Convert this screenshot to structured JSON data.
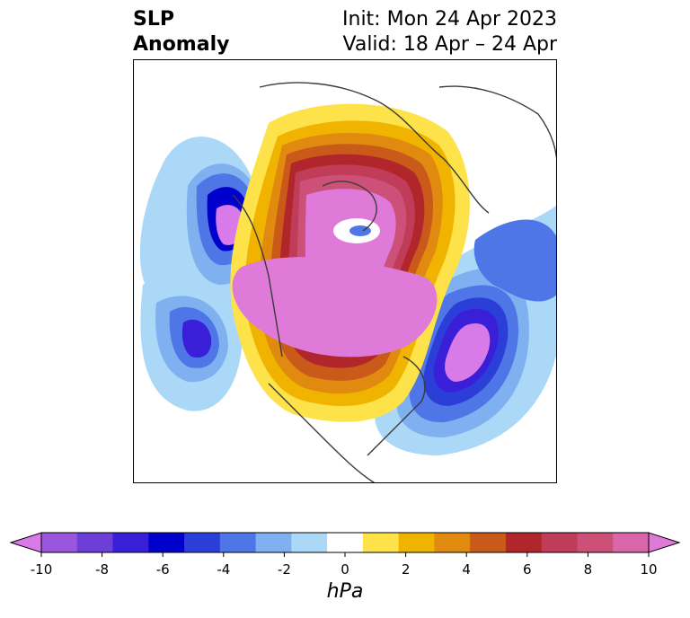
{
  "title": {
    "left_line1": "SLP",
    "left_line2": "Anomaly",
    "right_line1": "Init: Mon 24 Apr 2023",
    "right_line2": "Valid: 18 Apr – 24 Apr"
  },
  "colorbar": {
    "unit": "hPa",
    "ticks": [
      "-10",
      "-8",
      "-6",
      "-4",
      "-2",
      "0",
      "2",
      "4",
      "6",
      "8",
      "10"
    ],
    "colors": [
      "#d87ae8",
      "#9a57dd",
      "#6d3ed8",
      "#3a1fd8",
      "#0000cc",
      "#2b3fd8",
      "#4f76e6",
      "#7fb1f0",
      "#acd8f7",
      "#ffffff",
      "#fde24a",
      "#f0b400",
      "#e08a10",
      "#c95a1a",
      "#b0262a",
      "#c03c58",
      "#cc5078",
      "#d966a8",
      "#e07ad8"
    ]
  },
  "colors": {
    "strong_positive": "#e07ad8",
    "strong_negative": "#d87ae8",
    "coastline": "#3a3a3a"
  }
}
